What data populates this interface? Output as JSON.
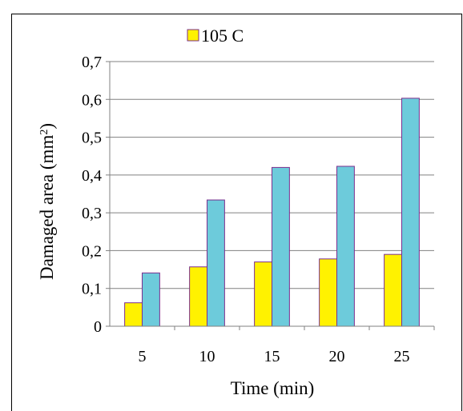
{
  "chart_data": {
    "type": "bar",
    "categories": [
      "5",
      "10",
      "15",
      "20",
      "25"
    ],
    "series": [
      {
        "name": "105 C",
        "color": "#FFF200",
        "values": [
          0.062,
          0.157,
          0.17,
          0.178,
          0.19
        ]
      },
      {
        "name": "",
        "color": "#6DCBDB",
        "values": [
          0.141,
          0.334,
          0.42,
          0.423,
          0.603
        ]
      }
    ],
    "xlabel": "Time (min)",
    "ylabel": "Damaged area (mm",
    "ylabel_sup": "2",
    "ylabel_end": ")",
    "ylim": [
      0,
      0.7
    ],
    "yticks": [
      0,
      0.1,
      0.2,
      0.3,
      0.4,
      0.5,
      0.6,
      0.7
    ],
    "ytick_labels": [
      "0",
      "0,1",
      "0,2",
      "0,3",
      "0,4",
      "0,5",
      "0,6",
      "0,7"
    ],
    "grid": true,
    "legend_position": "top",
    "bar_outline_color": "#7B2E8E",
    "grid_color": "#808080"
  }
}
